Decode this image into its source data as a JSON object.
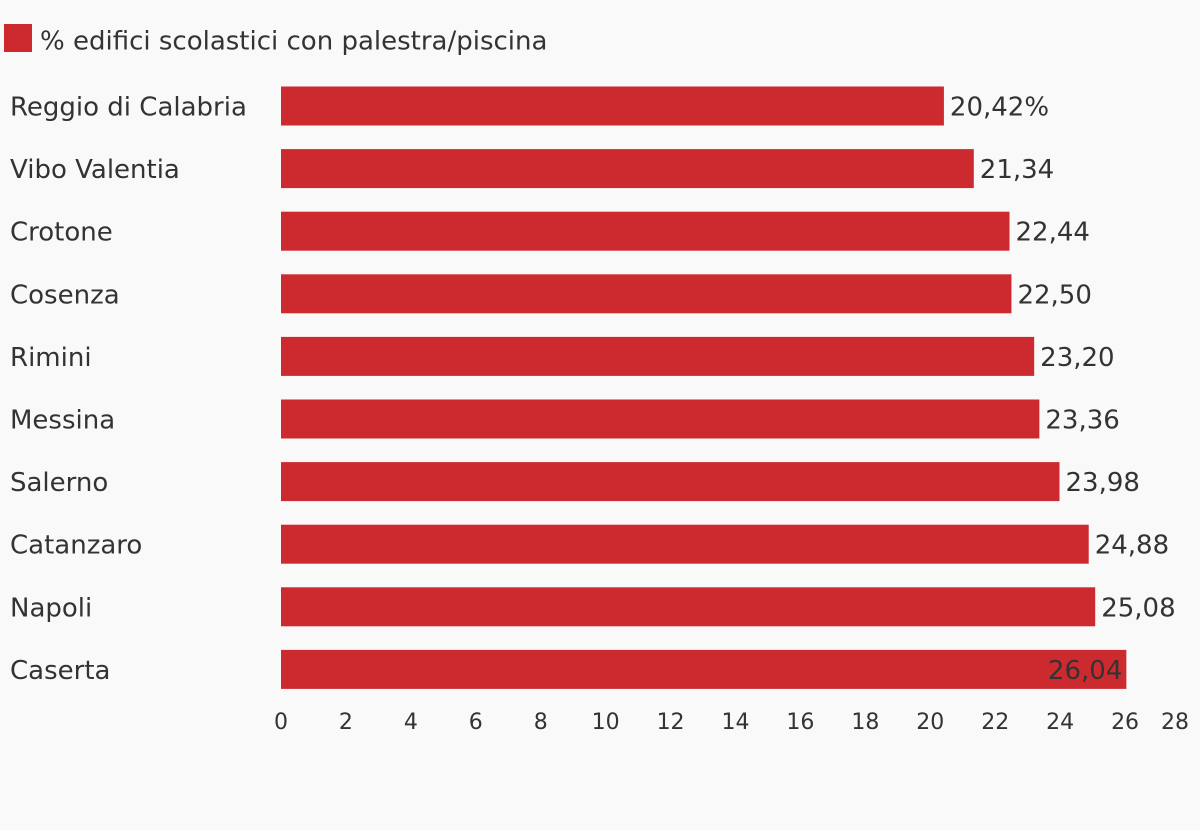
{
  "chart_data": {
    "type": "bar",
    "orientation": "horizontal",
    "categories": [
      "Reggio di Calabria",
      "Vibo Valentia",
      "Crotone",
      "Cosenza",
      "Rimini",
      "Messina",
      "Salerno",
      "Catanzaro",
      "Napoli",
      "Caserta"
    ],
    "series": [
      {
        "name": "% edifici scolastici con palestra/piscina",
        "color": "#cd2a30",
        "values": [
          20.42,
          21.34,
          22.44,
          22.5,
          23.2,
          23.36,
          23.98,
          24.88,
          25.08,
          26.04
        ],
        "value_labels": [
          "20,42%",
          "21,34",
          "22,44",
          "22,50",
          "23,20",
          "23,36",
          "23,98",
          "24,88",
          "25,08",
          "26,04"
        ]
      }
    ],
    "xlim": [
      0,
      28
    ],
    "xticks": [
      0,
      2,
      4,
      6,
      8,
      10,
      12,
      14,
      16,
      18,
      20,
      22,
      24,
      26,
      28
    ],
    "grid": false,
    "legend": "top-left"
  }
}
